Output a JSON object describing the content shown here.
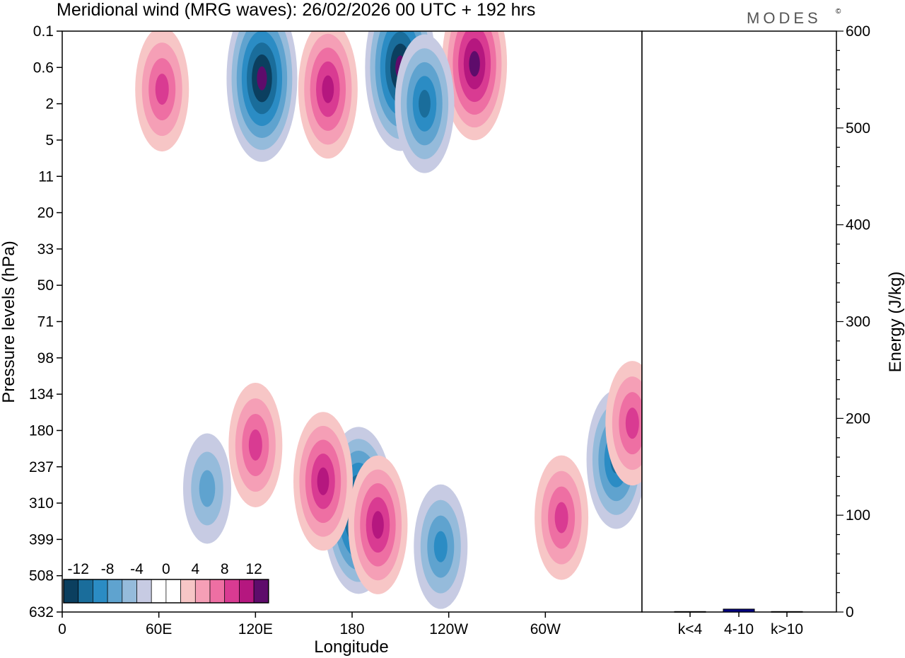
{
  "chart_data": [
    {
      "type": "heatmap",
      "title": "Meridional wind (MRG waves):  26/02/2026  00 UTC  + 192 hrs",
      "xlabel": "Longitude",
      "ylabel": "Pressure levels (hPa)",
      "x_ticks": [
        "0",
        "60E",
        "120E",
        "180",
        "120W",
        "60W"
      ],
      "x_tick_degrees": [
        0,
        60,
        120,
        180,
        240,
        300
      ],
      "x_range": [
        0,
        360
      ],
      "y_ticks": [
        "0.1",
        "0.6",
        "2",
        "5",
        "11",
        "20",
        "33",
        "50",
        "71",
        "98",
        "134",
        "180",
        "237",
        "310",
        "399",
        "508",
        "632"
      ],
      "colorbar": {
        "labels": [
          "-12",
          "-8",
          "-4",
          "0",
          "4",
          "8",
          "12"
        ],
        "levels": [
          -14,
          -12,
          -10,
          -8,
          -6,
          -4,
          -2,
          0,
          2,
          4,
          6,
          8,
          10,
          12,
          14
        ],
        "colors": [
          "#0b3f5f",
          "#1a6d9b",
          "#2b8cc4",
          "#5fa3cf",
          "#95bbdb",
          "#c7cbe3",
          "#ffffff",
          "#ffffff",
          "#f7c6c6",
          "#f59fb6",
          "#ee6fa3",
          "#d93b92",
          "#b5177f",
          "#5e0c6b"
        ]
      },
      "features": [
        {
          "lon": 184,
          "level_index": 13.2,
          "value": -14
        },
        {
          "lon": 196,
          "level_index": 13.6,
          "value": 10
        },
        {
          "lon": 162,
          "level_index": 12.4,
          "value": 10
        },
        {
          "lon": 344,
          "level_index": 11.8,
          "value": -10
        },
        {
          "lon": 354,
          "level_index": 10.8,
          "value": 8
        },
        {
          "lon": 120,
          "level_index": 11.4,
          "value": 8
        },
        {
          "lon": 90,
          "level_index": 12.6,
          "value": -6
        },
        {
          "lon": 210,
          "level_index": 1.0,
          "value": -14
        },
        {
          "lon": 124,
          "level_index": 1.3,
          "value": -14
        },
        {
          "lon": 165,
          "level_index": 1.6,
          "value": 10
        },
        {
          "lon": 256,
          "level_index": 0.9,
          "value": 12
        },
        {
          "lon": 62,
          "level_index": 1.6,
          "value": 8
        },
        {
          "lon": 225,
          "level_index": 2.0,
          "value": -10
        },
        {
          "lon": 310,
          "level_index": 13.4,
          "value": 8
        },
        {
          "lon": 235,
          "level_index": 14.2,
          "value": -8
        }
      ]
    },
    {
      "type": "bar",
      "categories": [
        "k<4",
        "4-10",
        "k>10"
      ],
      "values": [
        0.5,
        3,
        0.5
      ],
      "ylabel": "Energy (J/kg)",
      "ylim": [
        0,
        600
      ],
      "y_ticks": [
        "0",
        "100",
        "200",
        "300",
        "400",
        "500",
        "600"
      ],
      "bar_color": "#000080"
    }
  ],
  "logo": "MODES",
  "logo_mark": "©"
}
